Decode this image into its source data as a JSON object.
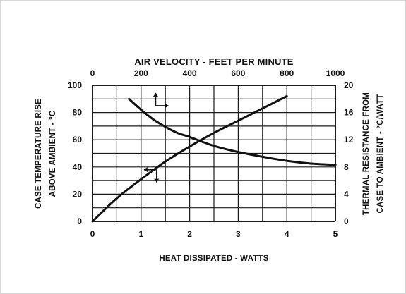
{
  "chart_data": {
    "type": "line",
    "title": "",
    "xlabel": "HEAT DISSIPATED - WATTS",
    "x2label": "AIR VELOCITY - FEET PER MINUTE",
    "ylabel_line1": "CASE TEMPERATURE RISE",
    "ylabel_line2": "ABOVE AMBIENT - °C",
    "y2label_line1": "THERMAL RESISTANCE FROM",
    "y2label_line2": "CASE TO AMBIENT - °C/WATT",
    "xlim": [
      0,
      5
    ],
    "x2lim": [
      0,
      1000
    ],
    "ylim": [
      0,
      100
    ],
    "y2lim": [
      0,
      20
    ],
    "x_ticks": [
      0,
      1,
      2,
      3,
      4,
      5
    ],
    "x2_ticks": [
      0,
      200,
      400,
      600,
      800,
      1000
    ],
    "y_ticks": [
      0,
      20,
      40,
      60,
      80,
      100
    ],
    "y2_ticks": [
      0,
      4,
      8,
      12,
      16,
      20
    ],
    "grid": true,
    "series": [
      {
        "axes": "bottom-left",
        "x": [
          0,
          0.5,
          1,
          1.5,
          2,
          2.5,
          3,
          3.5,
          4
        ],
        "y": [
          0,
          17,
          31,
          44,
          55,
          65,
          74,
          83,
          92
        ]
      },
      {
        "axes": "top-right",
        "x": [
          150,
          200,
          250,
          300,
          350,
          400,
          500,
          600,
          700,
          800,
          900,
          1000
        ],
        "y": [
          18,
          16.4,
          15,
          13.9,
          13,
          12.4,
          11.1,
          10.2,
          9.5,
          8.9,
          8.5,
          8.3
        ]
      }
    ],
    "annotations": [
      {
        "type": "arrows",
        "directions": [
          "up",
          "right"
        ],
        "marks_series": "rising"
      },
      {
        "type": "arrows",
        "directions": [
          "left",
          "down"
        ],
        "marks_series": "falling"
      }
    ]
  },
  "colors": {
    "ink": "#111111",
    "grid": "#1a1a1a",
    "frame": "#d6d6d6"
  }
}
